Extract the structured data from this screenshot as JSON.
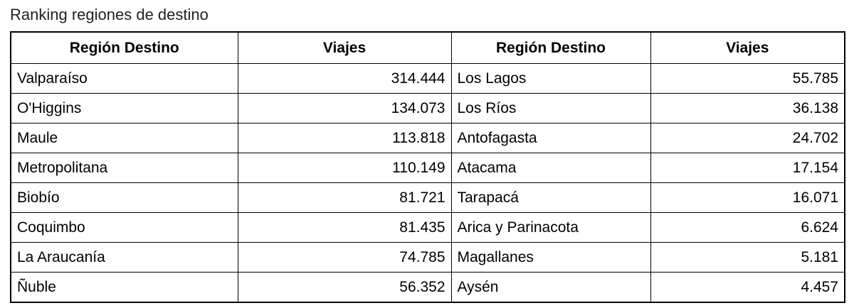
{
  "title": "Ranking regiones de destino",
  "table": {
    "headers": [
      "Región Destino",
      "Viajes",
      "Región Destino",
      "Viajes"
    ],
    "rows": [
      [
        "Valparaíso",
        "314.444",
        "Los Lagos",
        "55.785"
      ],
      [
        "O'Higgins",
        "134.073",
        "Los Ríos",
        "36.138"
      ],
      [
        "Maule",
        "113.818",
        "Antofagasta",
        "24.702"
      ],
      [
        "Metropolitana",
        "110.149",
        "Atacama",
        "17.154"
      ],
      [
        "Biobío",
        "81.721",
        "Tarapacá",
        "16.071"
      ],
      [
        "Coquimbo",
        "81.435",
        "Arica y Parinacota",
        "6.624"
      ],
      [
        "La Araucanía",
        "74.785",
        "Magallanes",
        "5.181"
      ],
      [
        "Ñuble",
        "56.352",
        "Aysén",
        "4.457"
      ]
    ]
  }
}
